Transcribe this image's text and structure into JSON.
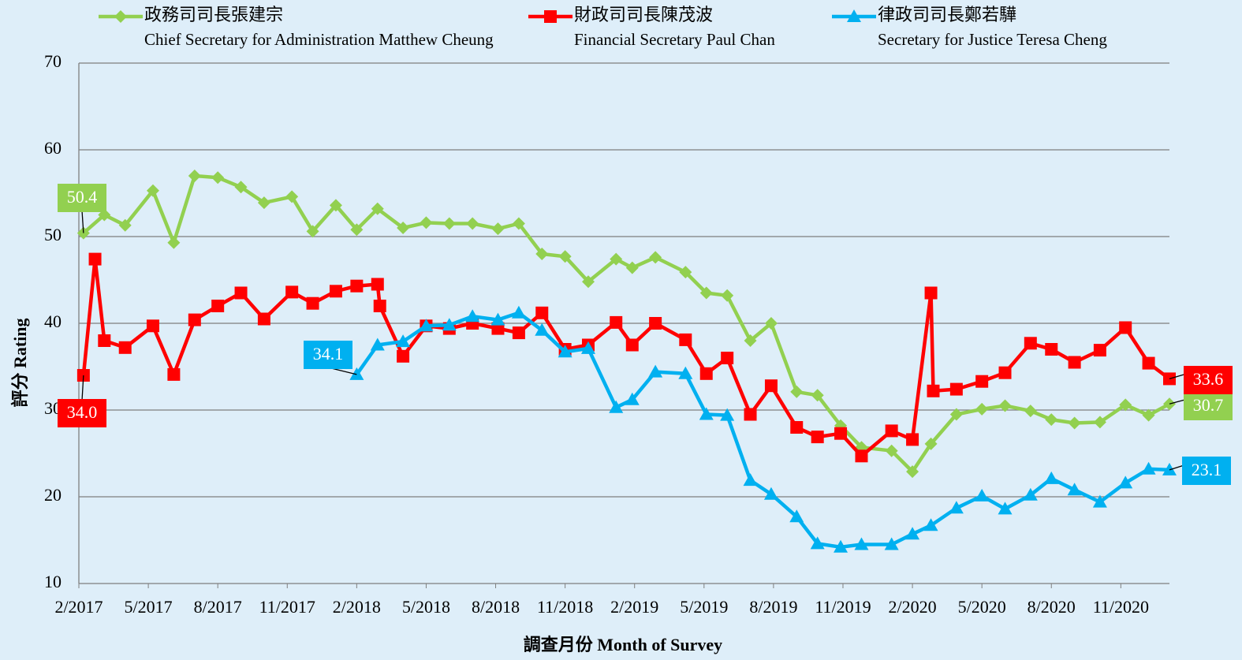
{
  "chart_data": {
    "type": "line",
    "ylabel": "評分 Rating",
    "xlabel": "調查月份 Month of Survey",
    "xlim": [
      0,
      47.1
    ],
    "xticks": [
      {
        "value": 0,
        "label": "2/2017"
      },
      {
        "value": 3,
        "label": "5/2017"
      },
      {
        "value": 6,
        "label": "8/2017"
      },
      {
        "value": 9,
        "label": "11/2017"
      },
      {
        "value": 12,
        "label": "2/2018"
      },
      {
        "value": 15,
        "label": "5/2018"
      },
      {
        "value": 18,
        "label": "8/2018"
      },
      {
        "value": 21,
        "label": "11/2018"
      },
      {
        "value": 24,
        "label": "2/2019"
      },
      {
        "value": 27,
        "label": "5/2019"
      },
      {
        "value": 30,
        "label": "8/2019"
      },
      {
        "value": 33,
        "label": "11/2019"
      },
      {
        "value": 36,
        "label": "2/2020"
      },
      {
        "value": 39,
        "label": "5/2020"
      },
      {
        "value": 42,
        "label": "8/2020"
      },
      {
        "value": 45,
        "label": "11/2020"
      }
    ],
    "ylim": [
      10,
      70
    ],
    "yticks": [
      10,
      20,
      30,
      40,
      50,
      60,
      70
    ],
    "grid": true,
    "series": [
      {
        "name": "政務司司長張建宗",
        "name_en": "Chief Secretary for Administration Matthew Cheung",
        "color": "#92d050",
        "marker": "diamond",
        "x": [
          0.2,
          1.1,
          2.0,
          3.2,
          4.1,
          5.0,
          6.0,
          7.0,
          8.0,
          9.2,
          10.1,
          11.1,
          12.0,
          12.9,
          14.0,
          15.0,
          16.0,
          17.0,
          18.1,
          19.0,
          20.0,
          21.0,
          22.0,
          23.2,
          23.9,
          24.9,
          26.2,
          27.1,
          28.0,
          29.0,
          29.9,
          31.0,
          31.9,
          32.9,
          33.8,
          35.1,
          36.0,
          36.8,
          37.9,
          39.0,
          40.0,
          41.1,
          42.0,
          43.0,
          44.1,
          45.2,
          46.2,
          47.1
        ],
        "values": [
          50.4,
          52.5,
          51.3,
          55.3,
          49.3,
          57.0,
          56.8,
          55.7,
          53.9,
          54.6,
          50.6,
          53.6,
          50.8,
          53.2,
          51.0,
          51.6,
          51.5,
          51.5,
          50.9,
          51.5,
          48.0,
          47.7,
          44.8,
          47.4,
          46.4,
          47.6,
          45.9,
          43.5,
          43.2,
          38.0,
          40.0,
          32.1,
          31.7,
          28.2,
          25.7,
          25.3,
          22.9,
          26.1,
          29.5,
          30.1,
          30.5,
          29.9,
          28.9,
          28.5,
          28.6,
          30.6,
          29.4,
          30.7
        ],
        "value_labels": [
          "50.4",
          null,
          null,
          null,
          null,
          null,
          null,
          null,
          null,
          null,
          null,
          null,
          null,
          null,
          null,
          null,
          null,
          null,
          null,
          null,
          null,
          null,
          null,
          null,
          null,
          null,
          null,
          null,
          null,
          null,
          null,
          null,
          null,
          null,
          null,
          null,
          null,
          null,
          null,
          null,
          null,
          null,
          null,
          null,
          null,
          null,
          null,
          "30.7"
        ]
      },
      {
        "name": "財政司司長陳茂波",
        "name_en": "Financial Secretary Paul Chan",
        "color": "#ff0000",
        "marker": "square",
        "x": [
          0.2,
          0.7,
          1.1,
          2.0,
          3.2,
          4.1,
          5.0,
          6.0,
          7.0,
          8.0,
          9.2,
          10.1,
          11.1,
          12.0,
          12.9,
          13.0,
          14.0,
          15.0,
          16.0,
          17.0,
          18.1,
          19.0,
          20.0,
          21.0,
          22.0,
          23.2,
          23.9,
          24.9,
          26.2,
          27.1,
          28.0,
          29.0,
          29.9,
          31.0,
          31.9,
          32.9,
          33.8,
          35.1,
          36.0,
          36.8,
          36.9,
          37.9,
          39.0,
          40.0,
          41.1,
          42.0,
          43.0,
          44.1,
          45.2,
          46.2,
          47.1
        ],
        "values": [
          34.0,
          47.4,
          38.0,
          37.2,
          39.7,
          34.1,
          40.4,
          42.0,
          43.5,
          40.5,
          43.6,
          42.3,
          43.7,
          44.3,
          44.5,
          42.0,
          36.2,
          39.7,
          39.4,
          40.0,
          39.4,
          38.9,
          41.2,
          37.0,
          37.5,
          40.1,
          37.5,
          40.0,
          38.1,
          34.2,
          36.0,
          29.5,
          32.8,
          28.0,
          26.9,
          27.3,
          24.7,
          27.6,
          26.6,
          43.5,
          32.2,
          32.4,
          33.3,
          34.3,
          37.7,
          37.0,
          35.5,
          36.9,
          39.5,
          35.4,
          33.6
        ],
        "value_labels": [
          "34.0",
          null,
          null,
          null,
          null,
          null,
          null,
          null,
          null,
          null,
          null,
          null,
          null,
          null,
          null,
          null,
          null,
          null,
          null,
          null,
          null,
          null,
          null,
          null,
          null,
          null,
          null,
          null,
          null,
          null,
          null,
          null,
          null,
          null,
          null,
          null,
          null,
          null,
          null,
          null,
          null,
          null,
          null,
          null,
          null,
          null,
          null,
          null,
          null,
          null,
          "33.6"
        ]
      },
      {
        "name": "律政司司長鄭若驊",
        "name_en": "Secretary for Justice Teresa Cheng",
        "color": "#00b0f0",
        "marker": "triangle",
        "x": [
          12.0,
          12.9,
          14.0,
          15.0,
          16.0,
          17.0,
          18.1,
          19.0,
          20.0,
          21.0,
          22.0,
          23.2,
          23.9,
          24.9,
          26.2,
          27.1,
          28.0,
          29.0,
          29.9,
          31.0,
          31.9,
          32.9,
          33.8,
          35.1,
          36.0,
          36.8,
          37.9,
          39.0,
          40.0,
          41.1,
          42.0,
          43.0,
          44.1,
          45.2,
          46.2,
          47.1
        ],
        "values": [
          34.1,
          37.5,
          37.9,
          39.7,
          39.8,
          40.8,
          40.4,
          41.2,
          39.2,
          36.7,
          37.1,
          30.3,
          31.2,
          34.4,
          34.2,
          29.5,
          29.4,
          21.9,
          20.3,
          17.7,
          14.6,
          14.2,
          14.5,
          14.5,
          15.7,
          16.7,
          18.7,
          20.1,
          18.6,
          20.2,
          22.1,
          20.8,
          19.4,
          21.6,
          23.2,
          23.1
        ],
        "value_labels": [
          "34.1",
          null,
          null,
          null,
          null,
          null,
          null,
          null,
          null,
          null,
          null,
          null,
          null,
          null,
          null,
          null,
          null,
          null,
          null,
          null,
          null,
          null,
          null,
          null,
          null,
          null,
          null,
          null,
          null,
          null,
          null,
          null,
          null,
          null,
          null,
          "23.1"
        ]
      }
    ]
  }
}
